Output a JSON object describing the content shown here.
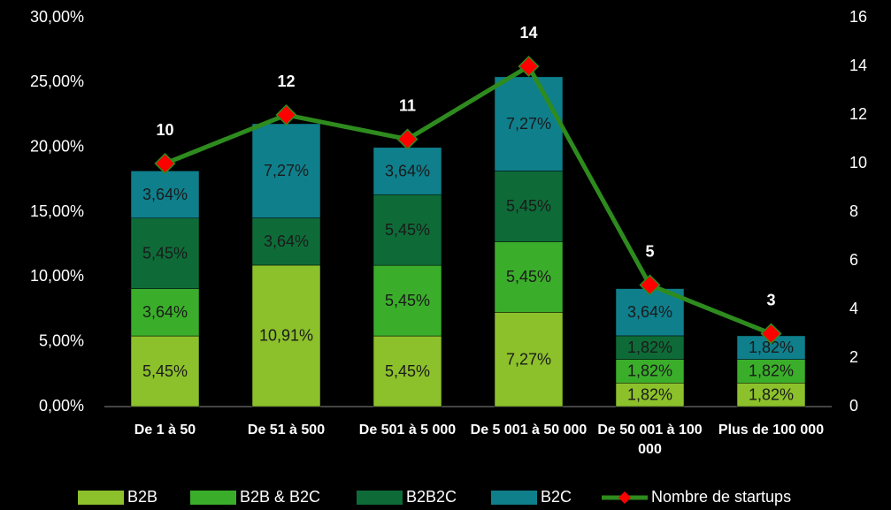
{
  "chart_data": {
    "type": "bar",
    "categories": [
      "De 1 à 50",
      "De 51 à 500",
      "De 501 à 5 000",
      "De 5 001 à 50 000",
      "De 50 001 à 100 000",
      "Plus de 100 000"
    ],
    "stacked": true,
    "series": [
      {
        "name": "B2B",
        "color": "#8cc12b",
        "values": [
          5.45,
          10.91,
          5.45,
          7.27,
          1.82,
          1.82
        ],
        "value_labels": [
          "5,45%",
          "10,91%",
          "5,45%",
          "7,27%",
          "1,82%",
          "1,82%"
        ]
      },
      {
        "name": "B2B & B2C",
        "color": "#3aae2a",
        "values": [
          3.64,
          null,
          5.45,
          5.45,
          1.82,
          1.82
        ],
        "value_labels": [
          "3,64%",
          null,
          "5,45%",
          "5,45%",
          "1,82%",
          "1,82%"
        ]
      },
      {
        "name": "B2B2C",
        "color": "#0e6b38",
        "values": [
          5.45,
          3.64,
          5.45,
          5.45,
          1.82,
          null
        ],
        "value_labels": [
          "5,45%",
          "3,64%",
          "5,45%",
          "5,45%",
          "1,82%",
          null
        ]
      },
      {
        "name": "B2C",
        "color": "#0f7f8c",
        "values": [
          3.64,
          7.27,
          3.64,
          7.27,
          3.64,
          1.82
        ],
        "value_labels": [
          "3,64%",
          "7,27%",
          "3,64%",
          "7,27%",
          "3,64%",
          "1,82%"
        ]
      },
      {
        "name": "Nombre de startups",
        "type": "line",
        "axis": "y2",
        "color": "#2e8b1e",
        "marker_color": "#ff0000",
        "values": [
          10,
          12,
          11,
          14,
          5,
          3
        ]
      }
    ],
    "ylim": [
      0,
      30
    ],
    "yticks": [
      {
        "value": 0,
        "label": "0,00%"
      },
      {
        "value": 5,
        "label": "5,00%"
      },
      {
        "value": 10,
        "label": "10,00%"
      },
      {
        "value": 15,
        "label": "15,00%"
      },
      {
        "value": 20,
        "label": "20,00%"
      },
      {
        "value": 25,
        "label": "25,00%"
      },
      {
        "value": 30,
        "label": "30,00%"
      }
    ],
    "y2lim": [
      0,
      16
    ],
    "y2ticks": [
      0,
      2,
      4,
      6,
      8,
      10,
      12,
      14,
      16
    ],
    "legend": "bottom"
  }
}
